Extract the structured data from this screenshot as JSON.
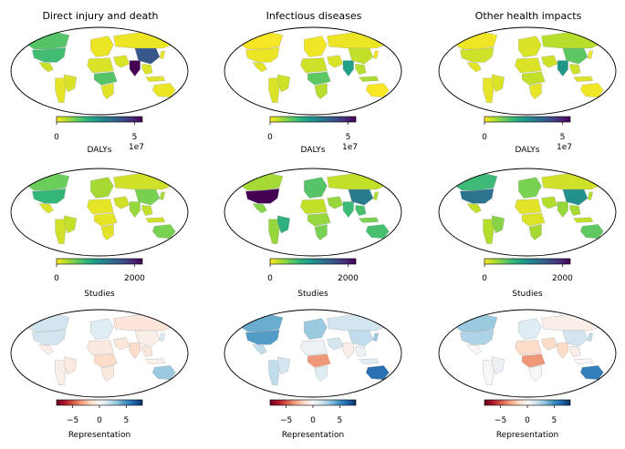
{
  "figure": {
    "columns": [
      {
        "title": "Direct injury and death"
      },
      {
        "title": "Infectious diseases"
      },
      {
        "title": "Other health impacts"
      }
    ]
  },
  "chart_data": [
    {
      "type": "heatmap",
      "map": "world-choropleth",
      "row": "DALYs",
      "column": "Direct injury and death",
      "title": "Direct injury and death",
      "colormap": "viridis_r",
      "colorbar": {
        "label": "DALYs",
        "range": [
          0,
          55000000
        ],
        "ticks": [
          "0",
          "5"
        ],
        "offset_label": "1e7"
      },
      "regions": [
        {
          "name": "Canada",
          "value": 15000000
        },
        {
          "name": "United States",
          "value": 17000000
        },
        {
          "name": "Mexico",
          "value": 4000000
        },
        {
          "name": "South America",
          "value": 2000000
        },
        {
          "name": "Brazil",
          "value": 3000000
        },
        {
          "name": "Europe",
          "value": 1500000
        },
        {
          "name": "Russia",
          "value": 1500000
        },
        {
          "name": "North Africa",
          "value": 3000000
        },
        {
          "name": "Central Africa",
          "value": 15000000
        },
        {
          "name": "Southern Africa",
          "value": 2500000
        },
        {
          "name": "Middle East",
          "value": 3000000
        },
        {
          "name": "India",
          "value": 55000000
        },
        {
          "name": "China",
          "value": 40000000
        },
        {
          "name": "Southeast Asia",
          "value": 3000000
        },
        {
          "name": "Indonesia",
          "value": 2500000
        },
        {
          "name": "Japan",
          "value": 1500000
        },
        {
          "name": "Australia",
          "value": 1500000
        }
      ]
    },
    {
      "type": "heatmap",
      "map": "world-choropleth",
      "row": "DALYs",
      "column": "Infectious diseases",
      "title": "Infectious diseases",
      "colormap": "viridis_r",
      "colorbar": {
        "label": "DALYs",
        "range": [
          0,
          55000000
        ],
        "ticks": [
          "0",
          "5"
        ],
        "offset_label": "1e7"
      },
      "regions": [
        {
          "name": "Canada",
          "value": 500000
        },
        {
          "name": "United States",
          "value": 1500000
        },
        {
          "name": "Mexico",
          "value": 2000000
        },
        {
          "name": "South America",
          "value": 3000000
        },
        {
          "name": "Brazil",
          "value": 4000000
        },
        {
          "name": "Europe",
          "value": 1000000
        },
        {
          "name": "Russia",
          "value": 1500000
        },
        {
          "name": "North Africa",
          "value": 4000000
        },
        {
          "name": "Central Africa",
          "value": 14000000
        },
        {
          "name": "Southern Africa",
          "value": 6000000
        },
        {
          "name": "Middle East",
          "value": 3000000
        },
        {
          "name": "India",
          "value": 24000000
        },
        {
          "name": "China",
          "value": 5000000
        },
        {
          "name": "Southeast Asia",
          "value": 6000000
        },
        {
          "name": "Indonesia",
          "value": 7000000
        },
        {
          "name": "Japan",
          "value": 500000
        },
        {
          "name": "Australia",
          "value": 300000
        }
      ]
    },
    {
      "type": "heatmap",
      "map": "world-choropleth",
      "row": "DALYs",
      "column": "Other health impacts",
      "title": "Other health impacts",
      "colormap": "viridis_r",
      "colorbar": {
        "label": "DALYs",
        "range": [
          0,
          55000000
        ],
        "ticks": [
          "0",
          "5"
        ],
        "offset_label": "1e7"
      },
      "regions": [
        {
          "name": "Canada",
          "value": 1000000
        },
        {
          "name": "United States",
          "value": 4000000
        },
        {
          "name": "Mexico",
          "value": 2000000
        },
        {
          "name": "South America",
          "value": 2000000
        },
        {
          "name": "Brazil",
          "value": 3000000
        },
        {
          "name": "Europe",
          "value": 3000000
        },
        {
          "name": "Russia",
          "value": 6000000
        },
        {
          "name": "North Africa",
          "value": 3000000
        },
        {
          "name": "Central Africa",
          "value": 5000000
        },
        {
          "name": "Southern Africa",
          "value": 2000000
        },
        {
          "name": "Middle East",
          "value": 4000000
        },
        {
          "name": "India",
          "value": 26000000
        },
        {
          "name": "China",
          "value": 14000000
        },
        {
          "name": "Southeast Asia",
          "value": 4000000
        },
        {
          "name": "Indonesia",
          "value": 3000000
        },
        {
          "name": "Japan",
          "value": 1000000
        },
        {
          "name": "Australia",
          "value": 1000000
        }
      ]
    },
    {
      "type": "heatmap",
      "map": "world-choropleth",
      "row": "Studies",
      "column": "Direct injury and death",
      "colormap": "viridis_r",
      "colorbar": {
        "label": "Studies",
        "range": [
          0,
          2200
        ],
        "ticks": [
          "0",
          "2000"
        ]
      },
      "regions": [
        {
          "name": "Canada",
          "value": 500
        },
        {
          "name": "United States",
          "value": 750
        },
        {
          "name": "Mexico",
          "value": 120
        },
        {
          "name": "South America",
          "value": 150
        },
        {
          "name": "Brazil",
          "value": 200
        },
        {
          "name": "Europe",
          "value": 300
        },
        {
          "name": "Russia",
          "value": 150
        },
        {
          "name": "North Africa",
          "value": 80
        },
        {
          "name": "Central Africa",
          "value": 80
        },
        {
          "name": "Southern Africa",
          "value": 100
        },
        {
          "name": "Middle East",
          "value": 150
        },
        {
          "name": "India",
          "value": 350
        },
        {
          "name": "China",
          "value": 450
        },
        {
          "name": "Southeast Asia",
          "value": 200
        },
        {
          "name": "Indonesia",
          "value": 150
        },
        {
          "name": "Japan",
          "value": 300
        },
        {
          "name": "Australia",
          "value": 450
        }
      ]
    },
    {
      "type": "heatmap",
      "map": "world-choropleth",
      "row": "Studies",
      "column": "Infectious diseases",
      "colormap": "viridis_r",
      "colorbar": {
        "label": "Studies",
        "range": [
          0,
          2200
        ],
        "ticks": [
          "0",
          "2000"
        ]
      },
      "regions": [
        {
          "name": "Canada",
          "value": 300
        },
        {
          "name": "United States",
          "value": 2200
        },
        {
          "name": "Mexico",
          "value": 400
        },
        {
          "name": "South America",
          "value": 350
        },
        {
          "name": "Brazil",
          "value": 800
        },
        {
          "name": "Europe",
          "value": 600
        },
        {
          "name": "Russia",
          "value": 200
        },
        {
          "name": "North Africa",
          "value": 200
        },
        {
          "name": "Central Africa",
          "value": 350
        },
        {
          "name": "Southern Africa",
          "value": 450
        },
        {
          "name": "Middle East",
          "value": 350
        },
        {
          "name": "India",
          "value": 700
        },
        {
          "name": "China",
          "value": 1300
        },
        {
          "name": "Southeast Asia",
          "value": 650
        },
        {
          "name": "Indonesia",
          "value": 450
        },
        {
          "name": "Japan",
          "value": 250
        },
        {
          "name": "Australia",
          "value": 650
        }
      ]
    },
    {
      "type": "heatmap",
      "map": "world-choropleth",
      "row": "Studies",
      "column": "Other health impacts",
      "colormap": "viridis_r",
      "colorbar": {
        "label": "Studies",
        "range": [
          0,
          2200
        ],
        "ticks": [
          "0",
          "2000"
        ]
      },
      "regions": [
        {
          "name": "Canada",
          "value": 700
        },
        {
          "name": "United States",
          "value": 1350
        },
        {
          "name": "Mexico",
          "value": 200
        },
        {
          "name": "South America",
          "value": 250
        },
        {
          "name": "Brazil",
          "value": 400
        },
        {
          "name": "Europe",
          "value": 450
        },
        {
          "name": "Russia",
          "value": 150
        },
        {
          "name": "North Africa",
          "value": 100
        },
        {
          "name": "Central Africa",
          "value": 120
        },
        {
          "name": "Southern Africa",
          "value": 300
        },
        {
          "name": "Middle East",
          "value": 250
        },
        {
          "name": "India",
          "value": 350
        },
        {
          "name": "China",
          "value": 1100
        },
        {
          "name": "Southeast Asia",
          "value": 300
        },
        {
          "name": "Indonesia",
          "value": 200
        },
        {
          "name": "Japan",
          "value": 250
        },
        {
          "name": "Australia",
          "value": 550
        }
      ]
    },
    {
      "type": "heatmap",
      "map": "world-choropleth",
      "row": "Representation",
      "column": "Direct injury and death",
      "colormap": "RdBu",
      "colorbar": {
        "label": "Representation",
        "range": [
          -8,
          8
        ],
        "ticks": [
          "−5",
          "0",
          "5"
        ]
      },
      "regions": [
        {
          "name": "Canada",
          "value": 1.5
        },
        {
          "name": "United States",
          "value": 1.5
        },
        {
          "name": "Mexico",
          "value": -0.5
        },
        {
          "name": "South America",
          "value": -0.5
        },
        {
          "name": "Brazil",
          "value": -0.8
        },
        {
          "name": "Europe",
          "value": 1.0
        },
        {
          "name": "Russia",
          "value": -1.0
        },
        {
          "name": "North Africa",
          "value": -0.8
        },
        {
          "name": "Central Africa",
          "value": -1.5
        },
        {
          "name": "Southern Africa",
          "value": -0.8
        },
        {
          "name": "Middle East",
          "value": -1.0
        },
        {
          "name": "India",
          "value": -1.5
        },
        {
          "name": "China",
          "value": -0.5
        },
        {
          "name": "Southeast Asia",
          "value": -1.0
        },
        {
          "name": "Indonesia",
          "value": -0.5
        },
        {
          "name": "Japan",
          "value": 1.0
        },
        {
          "name": "Australia",
          "value": 3.0
        }
      ]
    },
    {
      "type": "heatmap",
      "map": "world-choropleth",
      "row": "Representation",
      "column": "Infectious diseases",
      "colormap": "RdBu",
      "colorbar": {
        "label": "Representation",
        "range": [
          -8,
          8
        ],
        "ticks": [
          "−5",
          "0",
          "5"
        ]
      },
      "regions": [
        {
          "name": "Canada",
          "value": 4.0
        },
        {
          "name": "United States",
          "value": 4.5
        },
        {
          "name": "Mexico",
          "value": 2.0
        },
        {
          "name": "South America",
          "value": 2.0
        },
        {
          "name": "Brazil",
          "value": 1.5
        },
        {
          "name": "Europe",
          "value": 3.0
        },
        {
          "name": "Russia",
          "value": 1.5
        },
        {
          "name": "North Africa",
          "value": 0.5
        },
        {
          "name": "Central Africa",
          "value": -3.5
        },
        {
          "name": "Southern Africa",
          "value": 1.0
        },
        {
          "name": "Middle East",
          "value": 1.5
        },
        {
          "name": "India",
          "value": -0.5
        },
        {
          "name": "China",
          "value": 2.0
        },
        {
          "name": "Southeast Asia",
          "value": 0.5
        },
        {
          "name": "Indonesia",
          "value": 1.0
        },
        {
          "name": "Japan",
          "value": 3.0
        },
        {
          "name": "Australia",
          "value": 6.0
        }
      ]
    },
    {
      "type": "heatmap",
      "map": "world-choropleth",
      "row": "Representation",
      "column": "Other health impacts",
      "colormap": "RdBu",
      "colorbar": {
        "label": "Representation",
        "range": [
          -8,
          8
        ],
        "ticks": [
          "−5",
          "0",
          "5"
        ]
      },
      "regions": [
        {
          "name": "Canada",
          "value": 3.0
        },
        {
          "name": "United States",
          "value": 2.5
        },
        {
          "name": "Mexico",
          "value": 0.0
        },
        {
          "name": "South America",
          "value": 0.0
        },
        {
          "name": "Brazil",
          "value": 0.5
        },
        {
          "name": "Europe",
          "value": 1.0
        },
        {
          "name": "Russia",
          "value": -0.5
        },
        {
          "name": "North Africa",
          "value": -1.5
        },
        {
          "name": "Central Africa",
          "value": -3.5
        },
        {
          "name": "Southern Africa",
          "value": 0.0
        },
        {
          "name": "Middle East",
          "value": -1.5
        },
        {
          "name": "India",
          "value": -1.5
        },
        {
          "name": "China",
          "value": 1.5
        },
        {
          "name": "Southeast Asia",
          "value": -0.5
        },
        {
          "name": "Indonesia",
          "value": 0.0
        },
        {
          "name": "Japan",
          "value": 2.0
        },
        {
          "name": "Australia",
          "value": 5.5
        }
      ]
    }
  ]
}
